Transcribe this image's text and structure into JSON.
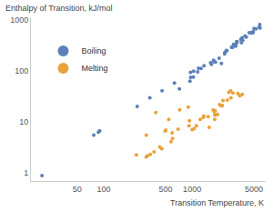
{
  "chart_data": {
    "type": "scatter",
    "x_label": "Transition Temperature, K",
    "y_label": "Enthalpy of Transition, kJ/mol",
    "log": true,
    "grid": false,
    "legend": "top-left",
    "marker": "circle",
    "xlim": [
      15,
      6800
    ],
    "ylim": [
      0.7,
      1100
    ],
    "xticks": [
      50,
      100,
      500,
      1000,
      5000
    ],
    "yticks": [
      1,
      10,
      100,
      1000
    ],
    "series": [
      {
        "name": "Boiling",
        "color": "#5b80b8",
        "x": [
          20,
          77,
          87,
          90,
          239,
          332,
          457,
          630,
          718,
          944,
          958,
          961,
          1032,
          1040,
          1156,
          1180,
          1261,
          1363,
          1615,
          1655,
          1757,
          1746,
          1837,
          2022,
          2143,
          2334,
          2345,
          2435,
          2477,
          2792,
          2835,
          2875,
          2944,
          3109,
          3129,
          3134,
          3186,
          3200,
          3236,
          3560,
          3609,
          3680,
          3737,
          3968,
          4098,
          4423,
          4682,
          4701,
          4876,
          4912,
          5017,
          5285,
          5731,
          5828,
          5869
        ],
        "values": [
          0.9,
          5.6,
          6.4,
          6.8,
          20.4,
          30,
          41.6,
          59,
          45,
          64,
          95,
          76,
          77,
          100,
          97,
          115,
          114,
          128,
          147,
          137,
          154,
          165,
          151,
          180,
          142,
          220,
          232,
          255,
          254,
          294,
          300,
          296,
          339,
          310,
          334,
          340,
          378,
          377,
          380,
          425,
          363,
          453,
          400,
          494,
          470,
          568,
          573,
          564,
          571,
          598,
          690,
          678,
          733,
          824,
          705
        ]
      },
      {
        "name": "Melting",
        "color": "#e9a23b",
        "x": [
          234,
          302,
          303,
          312,
          336,
          371,
          387,
          430,
          454,
          494,
          505,
          544,
          577,
          594,
          600,
          693,
          723,
          904,
          923,
          933,
          1000,
          1050,
          1115,
          1235,
          1337,
          1358,
          1519,
          1560,
          1728,
          1768,
          1799,
          1811,
          1814,
          1828,
          1941,
          2041,
          2128,
          2180,
          2183,
          2237,
          2506,
          2607,
          2719,
          2750,
          2896,
          3290,
          3459,
          3695
        ],
        "values": [
          2.29,
          2.09,
          5.59,
          2.19,
          2.33,
          2.6,
          15.5,
          3.28,
          3.0,
          6.69,
          7.0,
          11.3,
          4.14,
          6.21,
          4.77,
          7.32,
          17.5,
          19.8,
          8.48,
          10.7,
          7.12,
          7.43,
          8.54,
          11.3,
          12.5,
          13.3,
          12.9,
          7.9,
          17.5,
          16.2,
          11.4,
          13.8,
          14.1,
          16.7,
          14.2,
          22.2,
          21,
          21,
          21.5,
          26.6,
          27.2,
          38.6,
          41.3,
          30,
          37.5,
          36.6,
          33.2,
          35.3
        ]
      }
    ]
  }
}
